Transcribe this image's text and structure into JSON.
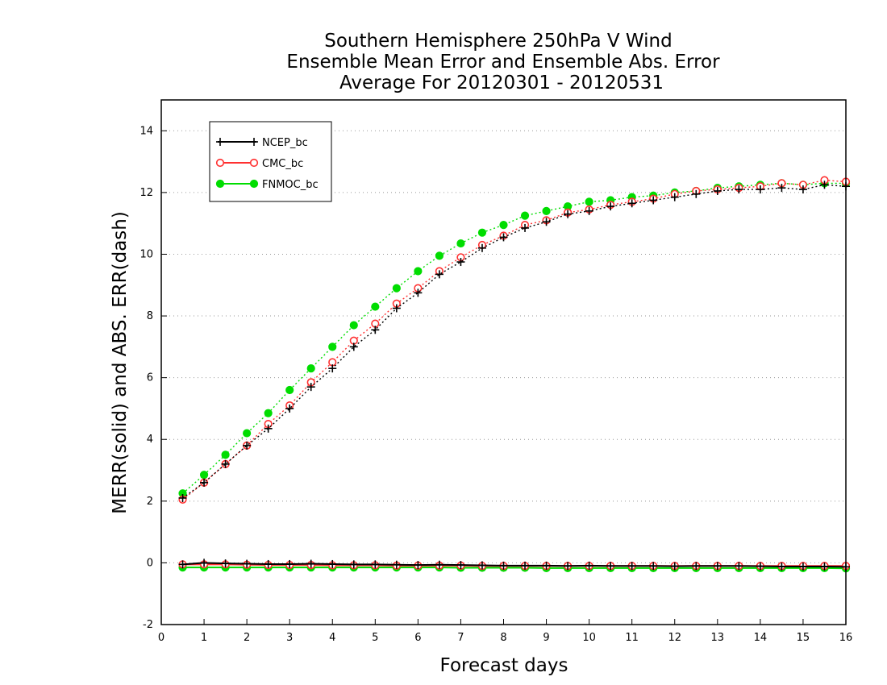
{
  "chart_data": {
    "type": "line",
    "title": [
      "Southern Hemisphere 250hPa V Wind",
      "Ensemble Mean Error and Ensemble Abs. Error",
      "Average For 20120301 - 20120531"
    ],
    "xlabel": "Forecast days",
    "ylabel": "MERR(solid) and ABS. ERR(dash)",
    "xlim": [
      0,
      16
    ],
    "ylim": [
      -2,
      15
    ],
    "xticks": [
      "0",
      "1",
      "2",
      "3",
      "4",
      "5",
      "6",
      "7",
      "8",
      "9",
      "10",
      "11",
      "12",
      "13",
      "14",
      "15",
      "16"
    ],
    "yticks": [
      "-2",
      "0",
      "2",
      "4",
      "6",
      "8",
      "10",
      "12",
      "14"
    ],
    "grid": "horizontal dotted",
    "legend_position": "top-left",
    "x": [
      0.5,
      1,
      1.5,
      2,
      2.5,
      3,
      3.5,
      4,
      4.5,
      5,
      5.5,
      6,
      6.5,
      7,
      7.5,
      8,
      8.5,
      9,
      9.5,
      10,
      10.5,
      11,
      11.5,
      12,
      12.5,
      13,
      13.5,
      14,
      14.5,
      15,
      15.5,
      16
    ],
    "series": [
      {
        "name": "NCEP_bc",
        "color": "#000000",
        "marker": "plus",
        "merr": [
          -0.05,
          0.0,
          -0.02,
          -0.03,
          -0.04,
          -0.04,
          -0.03,
          -0.04,
          -0.05,
          -0.05,
          -0.06,
          -0.07,
          -0.06,
          -0.07,
          -0.08,
          -0.09,
          -0.09,
          -0.09,
          -0.1,
          -0.09,
          -0.1,
          -0.1,
          -0.1,
          -0.11,
          -0.1,
          -0.1,
          -0.1,
          -0.11,
          -0.12,
          -0.12,
          -0.12,
          -0.13
        ],
        "abs_err": [
          2.1,
          2.6,
          3.2,
          3.8,
          4.35,
          5.0,
          5.7,
          6.3,
          7.0,
          7.55,
          8.25,
          8.75,
          9.35,
          9.75,
          10.2,
          10.55,
          10.85,
          11.05,
          11.3,
          11.4,
          11.55,
          11.65,
          11.75,
          11.85,
          11.95,
          12.05,
          12.1,
          12.1,
          12.15,
          12.1,
          12.25,
          12.2
        ]
      },
      {
        "name": "CMC_bc",
        "color": "#ff3030",
        "marker": "circle",
        "merr": [
          -0.05,
          -0.05,
          -0.05,
          -0.06,
          -0.07,
          -0.07,
          -0.07,
          -0.08,
          -0.08,
          -0.08,
          -0.09,
          -0.09,
          -0.09,
          -0.09,
          -0.1,
          -0.1,
          -0.1,
          -0.1,
          -0.1,
          -0.1,
          -0.1,
          -0.1,
          -0.1,
          -0.1,
          -0.1,
          -0.1,
          -0.1,
          -0.1,
          -0.1,
          -0.1,
          -0.1,
          -0.1
        ],
        "abs_err": [
          2.05,
          2.6,
          3.2,
          3.8,
          4.5,
          5.1,
          5.85,
          6.5,
          7.2,
          7.75,
          8.4,
          8.9,
          9.45,
          9.9,
          10.3,
          10.6,
          10.95,
          11.1,
          11.35,
          11.45,
          11.6,
          11.7,
          11.8,
          11.95,
          12.05,
          12.1,
          12.15,
          12.2,
          12.3,
          12.25,
          12.4,
          12.35
        ]
      },
      {
        "name": "FNMOC_bc",
        "color": "#00dd00",
        "marker": "filled-circle",
        "merr": [
          -0.15,
          -0.15,
          -0.15,
          -0.15,
          -0.15,
          -0.15,
          -0.15,
          -0.15,
          -0.15,
          -0.15,
          -0.15,
          -0.15,
          -0.15,
          -0.16,
          -0.16,
          -0.16,
          -0.16,
          -0.17,
          -0.17,
          -0.17,
          -0.17,
          -0.17,
          -0.17,
          -0.17,
          -0.17,
          -0.17,
          -0.17,
          -0.17,
          -0.17,
          -0.17,
          -0.17,
          -0.18
        ],
        "abs_err": [
          2.25,
          2.85,
          3.5,
          4.2,
          4.85,
          5.6,
          6.3,
          7.0,
          7.7,
          8.3,
          8.9,
          9.45,
          9.95,
          10.35,
          10.7,
          10.95,
          11.25,
          11.4,
          11.55,
          11.7,
          11.75,
          11.85,
          11.9,
          12.0,
          12.05,
          12.15,
          12.2,
          12.25,
          12.3,
          12.25,
          12.3,
          12.3
        ]
      }
    ]
  }
}
